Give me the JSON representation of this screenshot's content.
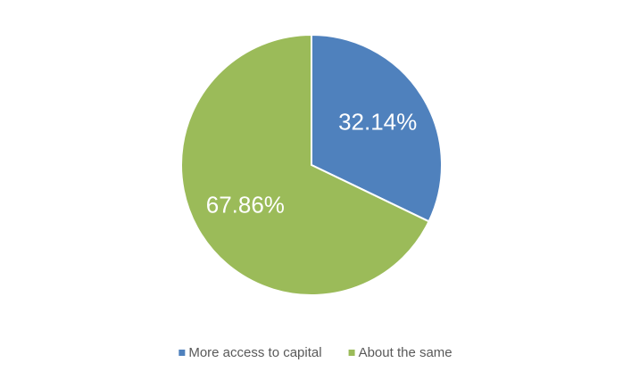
{
  "chart_data": {
    "type": "pie",
    "categories": [
      "More access to capital",
      "About the same"
    ],
    "values": [
      32.14,
      67.86
    ],
    "value_labels": [
      "32.14%",
      "67.86%"
    ],
    "colors": [
      "#4f81bd",
      "#9bbb59"
    ],
    "legend": "bottom"
  }
}
